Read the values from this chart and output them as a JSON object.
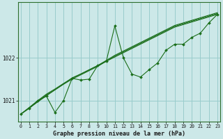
{
  "title": "Graphe pression niveau de la mer (hPa)",
  "bg_color": "#cce8e8",
  "grid_color": "#99cccc",
  "line_color": "#1a6e1a",
  "x_values": [
    0,
    1,
    2,
    3,
    4,
    5,
    6,
    7,
    8,
    9,
    10,
    11,
    12,
    13,
    14,
    15,
    16,
    17,
    18,
    19,
    20,
    21,
    22,
    23
  ],
  "y_jagged": [
    1020.68,
    1020.82,
    1021.0,
    1021.1,
    1020.72,
    1021.0,
    1021.52,
    1021.48,
    1021.5,
    1021.82,
    1021.92,
    1022.75,
    1022.0,
    1021.62,
    1021.55,
    1021.72,
    1021.88,
    1022.18,
    1022.32,
    1022.32,
    1022.48,
    1022.58,
    1022.82,
    1023.02
  ],
  "y_trend1": [
    1020.68,
    1020.82,
    1020.97,
    1021.11,
    1021.25,
    1021.39,
    1021.53,
    1021.62,
    1021.72,
    1021.82,
    1021.92,
    1022.02,
    1022.12,
    1022.22,
    1022.32,
    1022.42,
    1022.52,
    1022.62,
    1022.72,
    1022.78,
    1022.84,
    1022.9,
    1022.96,
    1023.02
  ],
  "y_trend2": [
    1020.68,
    1020.83,
    1020.98,
    1021.13,
    1021.25,
    1021.38,
    1021.5,
    1021.6,
    1021.7,
    1021.8,
    1021.92,
    1022.04,
    1022.14,
    1022.24,
    1022.34,
    1022.44,
    1022.54,
    1022.64,
    1022.74,
    1022.8,
    1022.86,
    1022.92,
    1022.98,
    1023.04
  ],
  "y_trend3": [
    1020.68,
    1020.84,
    1021.0,
    1021.15,
    1021.27,
    1021.4,
    1021.52,
    1021.62,
    1021.72,
    1021.82,
    1021.94,
    1022.06,
    1022.16,
    1022.26,
    1022.36,
    1022.46,
    1022.56,
    1022.66,
    1022.76,
    1022.82,
    1022.88,
    1022.94,
    1023.0,
    1023.06
  ],
  "ylim": [
    1020.5,
    1023.3
  ],
  "yticks": [
    1021,
    1022
  ],
  "xlim": [
    -0.3,
    23.3
  ],
  "xticks": [
    0,
    1,
    2,
    3,
    4,
    5,
    6,
    7,
    8,
    9,
    10,
    11,
    12,
    13,
    14,
    15,
    16,
    17,
    18,
    19,
    20,
    21,
    22,
    23
  ]
}
